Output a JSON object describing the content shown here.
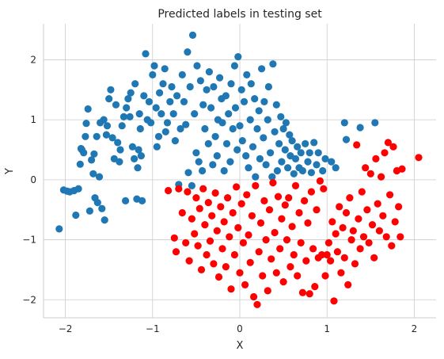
{
  "chart_data": {
    "type": "scatter",
    "title": "Predicted labels in testing set",
    "xlabel": "X",
    "ylabel": "Y",
    "xlim": [
      -2.25,
      2.25
    ],
    "ylim": [
      -2.3,
      2.6
    ],
    "grid": true,
    "xticks": [
      -2,
      -1,
      0,
      1,
      2
    ],
    "yticks": [
      -2,
      -1,
      0,
      1,
      2
    ],
    "xtick_labels": [
      "−2",
      "−1",
      "0",
      "1",
      "2"
    ],
    "ytick_labels": [
      "−2",
      "−1",
      "0",
      "1",
      "2"
    ],
    "colors": {
      "class_0": "#1f77b4",
      "class_1": "#ff0000"
    },
    "series": [
      {
        "color": "#1f77b4",
        "points": [
          [
            -2.07,
            -0.82
          ],
          [
            -2.02,
            -0.17
          ],
          [
            -1.98,
            -0.19
          ],
          [
            -1.95,
            -0.2
          ],
          [
            -1.9,
            -0.18
          ],
          [
            -1.88,
            -0.59
          ],
          [
            -1.85,
            -0.15
          ],
          [
            -1.83,
            0.26
          ],
          [
            -1.82,
            0.52
          ],
          [
            -1.81,
            0.5
          ],
          [
            -1.79,
            0.45
          ],
          [
            -1.77,
            0.72
          ],
          [
            -1.76,
            0.94
          ],
          [
            -1.74,
            1.18
          ],
          [
            -1.72,
            -0.52
          ],
          [
            -1.7,
            0.33
          ],
          [
            -1.68,
            0.1
          ],
          [
            -1.67,
            0.43
          ],
          [
            -1.66,
            -0.3
          ],
          [
            -1.64,
            0.72
          ],
          [
            -1.63,
            -0.38
          ],
          [
            -1.61,
            0.05
          ],
          [
            -1.6,
            0.95
          ],
          [
            -1.58,
            -0.48
          ],
          [
            -1.56,
            1.0
          ],
          [
            -1.55,
            -0.67
          ],
          [
            -1.53,
            0.75
          ],
          [
            -1.52,
            0.9
          ],
          [
            -1.5,
            1.35
          ],
          [
            -1.48,
            1.5
          ],
          [
            -1.46,
            0.7
          ],
          [
            -1.44,
            0.35
          ],
          [
            -1.42,
            1.25
          ],
          [
            -1.4,
            0.62
          ],
          [
            -1.38,
            0.3
          ],
          [
            -1.37,
            0.5
          ],
          [
            -1.35,
            0.9
          ],
          [
            -1.33,
            1.05
          ],
          [
            -1.31,
            -0.35
          ],
          [
            -1.3,
            1.2
          ],
          [
            -1.28,
            1.35
          ],
          [
            -1.26,
            1.05
          ],
          [
            -1.25,
            1.45
          ],
          [
            -1.23,
            0.55
          ],
          [
            -1.21,
            0.35
          ],
          [
            -1.2,
            1.6
          ],
          [
            -1.18,
            -0.32
          ],
          [
            -1.17,
            0.2
          ],
          [
            -1.16,
            0.5
          ],
          [
            -1.15,
            1.1
          ],
          [
            -1.14,
            0.85
          ],
          [
            -1.13,
            0.4
          ],
          [
            -1.12,
            -0.35
          ],
          [
            -1.1,
            1.4
          ],
          [
            -1.08,
            2.1
          ],
          [
            -1.06,
            1.0
          ],
          [
            -1.04,
            1.3
          ],
          [
            -1.02,
            0.95
          ],
          [
            -1.0,
            1.75
          ],
          [
            -0.98,
            1.9
          ],
          [
            -0.96,
            1.2
          ],
          [
            -0.95,
            0.55
          ],
          [
            -0.93,
            0.72
          ],
          [
            -0.92,
            1.45
          ],
          [
            -0.9,
            1.1
          ],
          [
            -0.88,
            1.6
          ],
          [
            -0.86,
            1.85
          ],
          [
            -0.85,
            0.8
          ],
          [
            -0.83,
            0.95
          ],
          [
            -0.8,
            1.3
          ],
          [
            -0.78,
            1.55
          ],
          [
            -0.76,
            1.1
          ],
          [
            -0.74,
            0.65
          ],
          [
            -0.72,
            1.4
          ],
          [
            -0.7,
            -0.08
          ],
          [
            -0.68,
            0.85
          ],
          [
            -0.66,
            1.75
          ],
          [
            -0.64,
            1.3
          ],
          [
            -0.62,
            0.92
          ],
          [
            -0.6,
            2.13
          ],
          [
            -0.59,
            0.12
          ],
          [
            -0.57,
            1.55
          ],
          [
            -0.55,
            -0.1
          ],
          [
            -0.54,
            2.41
          ],
          [
            -0.52,
            1.1
          ],
          [
            -0.5,
            0.45
          ],
          [
            -0.49,
            1.9
          ],
          [
            -0.47,
            0.3
          ],
          [
            -0.45,
            1.65
          ],
          [
            -0.43,
            0.15
          ],
          [
            -0.42,
            1.25
          ],
          [
            -0.4,
            0.85
          ],
          [
            -0.38,
            1.5
          ],
          [
            -0.36,
            0.6
          ],
          [
            -0.35,
            1.8
          ],
          [
            -0.33,
            1.2
          ],
          [
            -0.31,
            0.25
          ],
          [
            -0.3,
            1.55
          ],
          [
            -0.28,
            0.72
          ],
          [
            -0.26,
            0.4
          ],
          [
            -0.25,
            1.0
          ],
          [
            -0.23,
            1.7
          ],
          [
            -0.21,
            1.35
          ],
          [
            -0.2,
            0.95
          ],
          [
            -0.18,
            0.15
          ],
          [
            -0.16,
            1.4
          ],
          [
            -0.15,
            0.6
          ],
          [
            -0.13,
            1.1
          ],
          [
            -0.11,
            0.3
          ],
          [
            -0.1,
            1.6
          ],
          [
            -0.08,
            0.85
          ],
          [
            -0.06,
            1.9
          ],
          [
            -0.05,
            1.2
          ],
          [
            -0.03,
            0.5
          ],
          [
            -0.02,
            2.05
          ],
          [
            0.0,
            0.9
          ],
          [
            0.02,
            1.5
          ],
          [
            0.03,
            0.65
          ],
          [
            0.05,
            1.3
          ],
          [
            0.07,
            0.4
          ],
          [
            0.08,
            1.75
          ],
          [
            0.1,
            0.2
          ],
          [
            0.12,
            1.0
          ],
          [
            0.13,
            1.6
          ],
          [
            0.15,
            0.55
          ],
          [
            0.17,
            1.35
          ],
          [
            0.18,
            0.05
          ],
          [
            0.2,
            0.85
          ],
          [
            0.22,
            1.15
          ],
          [
            0.23,
            0.35
          ],
          [
            0.25,
            1.85
          ],
          [
            0.27,
            0.7
          ],
          [
            0.28,
            1.3
          ],
          [
            0.3,
            0.25
          ],
          [
            0.32,
            1.0
          ],
          [
            0.33,
            1.55
          ],
          [
            0.35,
            0.45
          ],
          [
            0.37,
            0.05
          ],
          [
            0.38,
            1.93
          ],
          [
            0.4,
            0.8
          ],
          [
            0.42,
            1.25
          ],
          [
            0.43,
            0.15
          ],
          [
            0.45,
            0.6
          ],
          [
            0.47,
            1.05
          ],
          [
            0.48,
            0.3
          ],
          [
            0.5,
            0.85
          ],
          [
            0.52,
            0.5
          ],
          [
            0.53,
            0.95
          ],
          [
            0.55,
            0.2
          ],
          [
            0.57,
            0.75
          ],
          [
            0.58,
            0.4
          ],
          [
            0.6,
            0.65
          ],
          [
            0.62,
            0.1
          ],
          [
            0.64,
            0.35
          ],
          [
            0.66,
            0.55
          ],
          [
            0.68,
            0.2
          ],
          [
            0.7,
            0.45
          ],
          [
            0.72,
            0.15
          ],
          [
            0.75,
            0.6
          ],
          [
            0.78,
            0.3
          ],
          [
            0.8,
            0.45
          ],
          [
            0.82,
            0.12
          ],
          [
            0.85,
            0.62
          ],
          [
            0.88,
            0.25
          ],
          [
            0.9,
            0.45
          ],
          [
            0.95,
            0.15
          ],
          [
            0.98,
            0.35
          ],
          [
            1.05,
            0.3
          ],
          [
            1.1,
            0.2
          ],
          [
            1.2,
            0.95
          ],
          [
            1.22,
            0.67
          ],
          [
            1.38,
            0.87
          ],
          [
            1.55,
            0.95
          ]
        ]
      },
      {
        "color": "#ff0000",
        "points": [
          [
            -0.82,
            -0.18
          ],
          [
            -0.75,
            -0.97
          ],
          [
            -0.73,
            -1.2
          ],
          [
            -0.7,
            -0.15
          ],
          [
            -0.66,
            -0.55
          ],
          [
            -0.62,
            -1.05
          ],
          [
            -0.6,
            -0.2
          ],
          [
            -0.58,
            -1.35
          ],
          [
            -0.55,
            -0.65
          ],
          [
            -0.52,
            -0.9
          ],
          [
            -0.5,
            -0.3
          ],
          [
            -0.48,
            -1.1
          ],
          [
            -0.46,
            -0.48
          ],
          [
            -0.44,
            -1.5
          ],
          [
            -0.42,
            -0.15
          ],
          [
            -0.4,
            -0.75
          ],
          [
            -0.38,
            -1.25
          ],
          [
            -0.36,
            -0.38
          ],
          [
            -0.34,
            -1.02
          ],
          [
            -0.32,
            -0.6
          ],
          [
            -0.3,
            -1.4
          ],
          [
            -0.28,
            -0.22
          ],
          [
            -0.26,
            -0.85
          ],
          [
            -0.24,
            -1.62
          ],
          [
            -0.22,
            -0.45
          ],
          [
            -0.2,
            -1.15
          ],
          [
            -0.18,
            -0.7
          ],
          [
            -0.16,
            -1.45
          ],
          [
            -0.14,
            -0.3
          ],
          [
            -0.12,
            -0.95
          ],
          [
            -0.1,
            -1.82
          ],
          [
            -0.08,
            -0.55
          ],
          [
            -0.06,
            -1.25
          ],
          [
            -0.04,
            -0.12
          ],
          [
            -0.02,
            -0.8
          ],
          [
            0.0,
            -1.55
          ],
          [
            0.02,
            -0.4
          ],
          [
            0.04,
            -1.05
          ],
          [
            0.06,
            -1.75
          ],
          [
            0.08,
            -0.25
          ],
          [
            0.1,
            -0.92
          ],
          [
            0.12,
            -1.38
          ],
          [
            0.14,
            -0.6
          ],
          [
            0.16,
            -1.95
          ],
          [
            0.18,
            -0.1
          ],
          [
            0.2,
            -2.08
          ],
          [
            0.22,
            -1.2
          ],
          [
            0.24,
            -0.72
          ],
          [
            0.26,
            -1.6
          ],
          [
            0.28,
            -0.35
          ],
          [
            0.3,
            -1.0
          ],
          [
            0.32,
            -1.85
          ],
          [
            0.34,
            -0.5
          ],
          [
            0.36,
            -1.32
          ],
          [
            0.38,
            -0.05
          ],
          [
            0.4,
            -0.88
          ],
          [
            0.42,
            -1.55
          ],
          [
            0.44,
            -0.28
          ],
          [
            0.46,
            -1.15
          ],
          [
            0.48,
            -0.65
          ],
          [
            0.5,
            -1.7
          ],
          [
            0.52,
            -0.42
          ],
          [
            0.54,
            -1.0
          ],
          [
            0.56,
            -0.3
          ],
          [
            0.58,
            -1.45
          ],
          [
            0.6,
            -0.78
          ],
          [
            0.62,
            -1.25
          ],
          [
            0.64,
            -0.1
          ],
          [
            0.66,
            -1.6
          ],
          [
            0.68,
            -0.55
          ],
          [
            0.7,
            -1.05
          ],
          [
            0.72,
            -1.88
          ],
          [
            0.74,
            -0.35
          ],
          [
            0.76,
            -1.35
          ],
          [
            0.78,
            -0.72
          ],
          [
            0.8,
            -1.9
          ],
          [
            0.82,
            -0.2
          ],
          [
            0.84,
            -1.15
          ],
          [
            0.86,
            -1.78
          ],
          [
            0.88,
            -0.5
          ],
          [
            0.9,
            -1.3
          ],
          [
            0.92,
            -0.02
          ],
          [
            0.94,
            -1.25
          ],
          [
            0.96,
            -0.15
          ],
          [
            0.98,
            -1.6
          ],
          [
            1.0,
            -1.25
          ],
          [
            1.02,
            -1.05
          ],
          [
            1.04,
            -1.35
          ],
          [
            1.06,
            -0.7
          ],
          [
            1.08,
            -2.02
          ],
          [
            1.1,
            -0.9
          ],
          [
            1.12,
            -1.2
          ],
          [
            1.14,
            -0.45
          ],
          [
            1.16,
            -1.55
          ],
          [
            1.18,
            -0.8
          ],
          [
            1.2,
            -1.3
          ],
          [
            1.22,
            -0.55
          ],
          [
            1.24,
            -1.75
          ],
          [
            1.26,
            -0.3
          ],
          [
            1.28,
            -1.0
          ],
          [
            1.3,
            -0.85
          ],
          [
            1.32,
            -1.4
          ],
          [
            1.34,
            0.58
          ],
          [
            1.36,
            -0.65
          ],
          [
            1.38,
            -1.15
          ],
          [
            1.4,
            -0.2
          ],
          [
            1.42,
            -0.95
          ],
          [
            1.44,
            0.2
          ],
          [
            1.46,
            -0.5
          ],
          [
            1.48,
            -1.05
          ],
          [
            1.5,
            0.1
          ],
          [
            1.52,
            -0.75
          ],
          [
            1.54,
            -1.3
          ],
          [
            1.56,
            0.35
          ],
          [
            1.58,
            -0.4
          ],
          [
            1.6,
            -0.85
          ],
          [
            1.62,
            0.05
          ],
          [
            1.64,
            -0.6
          ],
          [
            1.66,
            0.45
          ],
          [
            1.68,
            -0.95
          ],
          [
            1.7,
            0.62
          ],
          [
            1.72,
            -0.25
          ],
          [
            1.74,
            -1.1
          ],
          [
            1.76,
            0.55
          ],
          [
            1.78,
            -0.7
          ],
          [
            1.8,
            0.15
          ],
          [
            1.82,
            -0.45
          ],
          [
            1.84,
            -0.95
          ],
          [
            1.86,
            0.18
          ],
          [
            2.05,
            0.37
          ]
        ]
      }
    ]
  }
}
